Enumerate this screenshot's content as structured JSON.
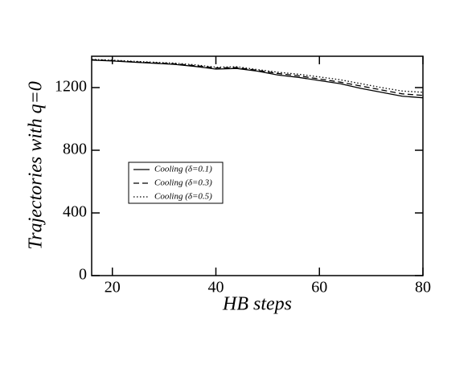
{
  "chart_data": {
    "type": "line",
    "x_label": "HB steps",
    "y_label": "Trajectories with q=0",
    "x": [
      16,
      20,
      24,
      28,
      32,
      36,
      40,
      44,
      48,
      52,
      56,
      60,
      64,
      68,
      72,
      76,
      80
    ],
    "series": [
      {
        "name": "Cooling (δ=0.1)",
        "color": "#000000",
        "dash": "solid",
        "values": [
          1375,
          1370,
          1362,
          1355,
          1348,
          1335,
          1318,
          1322,
          1305,
          1280,
          1265,
          1245,
          1225,
          1195,
          1170,
          1145,
          1135
        ]
      },
      {
        "name": "Cooling (δ=0.3)",
        "color": "#000000",
        "dash": "dashed",
        "values": [
          1378,
          1372,
          1365,
          1358,
          1352,
          1340,
          1325,
          1328,
          1310,
          1290,
          1275,
          1255,
          1235,
          1210,
          1185,
          1160,
          1150
        ]
      },
      {
        "name": "Cooling (δ=0.5)",
        "color": "#000000",
        "dash": "dotted",
        "values": [
          1380,
          1375,
          1368,
          1362,
          1356,
          1345,
          1330,
          1333,
          1315,
          1298,
          1285,
          1268,
          1250,
          1225,
          1200,
          1178,
          1170
        ]
      }
    ],
    "xlim": [
      16,
      80
    ],
    "xticks": [
      20,
      40,
      60,
      80
    ],
    "ylim": [
      0,
      1400
    ],
    "yticks": [
      0,
      400,
      800,
      1200
    ],
    "grid": false,
    "legend": "center-left"
  }
}
